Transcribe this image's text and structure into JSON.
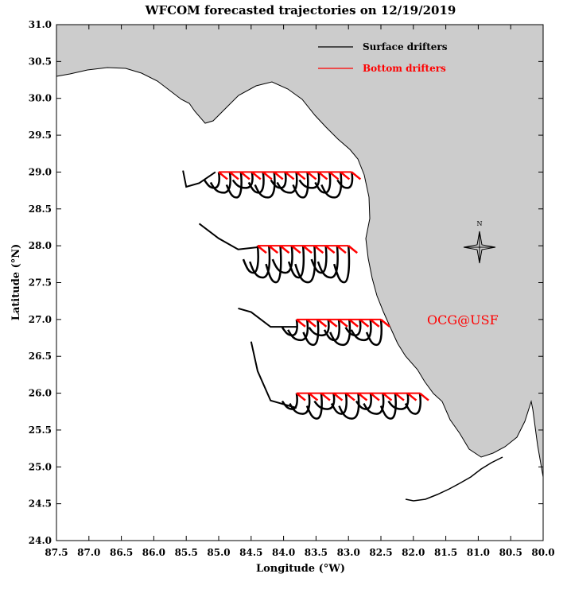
{
  "title": "WFCOM forecasted trajectories on 12/19/2019",
  "xlabel": "Longitude (°W)",
  "ylabel": "Latitude (°N)",
  "xticks": [
    "87.5",
    "87.0",
    "86.5",
    "86.0",
    "85.5",
    "85.0",
    "84.5",
    "84.0",
    "83.5",
    "83.0",
    "82.5",
    "82.0",
    "81.5",
    "81.0",
    "80.5",
    "80.0"
  ],
  "yticks": [
    "31.0",
    "30.5",
    "30.0",
    "29.5",
    "29.0",
    "28.5",
    "28.0",
    "27.5",
    "27.0",
    "26.5",
    "26.0",
    "25.5",
    "25.0",
    "24.5",
    "24.0"
  ],
  "legend": {
    "surface": {
      "label": "Surface drifters",
      "color": "#000000"
    },
    "bottom": {
      "label": "Bottom drifters",
      "color": "#ff0000"
    }
  },
  "watermark": {
    "text": "OCG@USF",
    "color": "#ff0000"
  },
  "compass_label": "N",
  "colors": {
    "land": "#cccccc",
    "water": "#ffffff",
    "coast": "#000000"
  },
  "chart_data": {
    "type": "map",
    "title": "WFCOM forecasted trajectories on 12/19/2019",
    "xlabel": "Longitude (°W)",
    "ylabel": "Latitude (°N)",
    "xlim": [
      87.5,
      80.0
    ],
    "ylim": [
      24.0,
      31.0
    ],
    "release_lines": [
      {
        "lat": 29.0,
        "lon_start": 85.0,
        "lon_end": 82.95,
        "count": 13
      },
      {
        "lat": 28.0,
        "lon_start": 84.4,
        "lon_end": 83.0,
        "count": 9
      },
      {
        "lat": 27.0,
        "lon_start": 83.8,
        "lon_end": 82.5,
        "count": 9
      },
      {
        "lat": 26.0,
        "lon_start": 83.8,
        "lon_end": 81.9,
        "count": 11
      }
    ]
  }
}
